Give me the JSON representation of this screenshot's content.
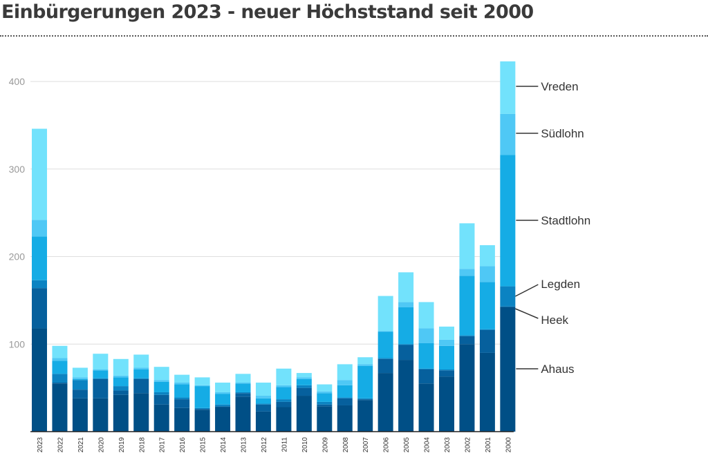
{
  "chart_data": {
    "type": "bar",
    "stacked": true,
    "title": "Einbürgerungen 2023 - neuer Höchststand seit 2000",
    "xlabel": "",
    "ylabel": "",
    "ylim": [
      0,
      400
    ],
    "y_ticks": [
      100,
      200,
      300,
      400
    ],
    "y_tick_labels": [
      "100",
      "200",
      "300",
      "400"
    ],
    "categories": [
      "2023",
      "2022",
      "2021",
      "2020",
      "2019",
      "2018",
      "2017",
      "2016",
      "2015",
      "2014",
      "2013",
      "2012",
      "2011",
      "2010",
      "2009",
      "2008",
      "2007",
      "2006",
      "2005",
      "2004",
      "2003",
      "2002",
      "2001",
      "2000"
    ],
    "series": [
      {
        "name": "Ahaus",
        "color": "#004f86",
        "values": [
          118,
          55,
          38,
          38,
          42,
          44,
          31,
          27,
          25,
          28,
          40,
          23,
          28,
          41,
          29,
          30,
          36,
          67,
          82,
          55,
          63,
          100,
          90,
          142
        ]
      },
      {
        "name": "Heek",
        "color": "#06609d",
        "values": [
          46,
          1,
          10,
          22,
          5,
          16,
          11,
          10,
          1,
          1,
          4,
          8,
          6,
          9,
          2,
          8,
          1,
          16,
          17,
          16,
          7,
          9,
          26,
          1
        ]
      },
      {
        "name": "Legden",
        "color": "#0b83c2",
        "values": [
          9,
          10,
          11,
          1,
          5,
          1,
          3,
          2,
          1,
          2,
          1,
          1,
          3,
          3,
          3,
          1,
          1,
          1,
          1,
          1,
          1,
          1,
          1,
          23
        ]
      },
      {
        "name": "Stadtlohn",
        "color": "#15ace5",
        "values": [
          50,
          15,
          1,
          9,
          10,
          10,
          12,
          15,
          25,
          12,
          10,
          6,
          14,
          7,
          10,
          14,
          37,
          30,
          42,
          29,
          27,
          68,
          54,
          150
        ]
      },
      {
        "name": "Südlohn",
        "color": "#4fc8f5",
        "values": [
          19,
          3,
          2,
          1,
          2,
          2,
          2,
          2,
          1,
          2,
          1,
          3,
          2,
          2,
          2,
          6,
          2,
          1,
          6,
          17,
          7,
          8,
          18,
          47
        ]
      },
      {
        "name": "Vreden",
        "color": "#72e2fc",
        "values": [
          104,
          14,
          11,
          18,
          19,
          15,
          15,
          9,
          9,
          11,
          10,
          15,
          19,
          5,
          8,
          18,
          8,
          40,
          34,
          30,
          15,
          52,
          24,
          60
        ]
      }
    ],
    "legend_placement": "right, inline next to the 2000 bar"
  }
}
